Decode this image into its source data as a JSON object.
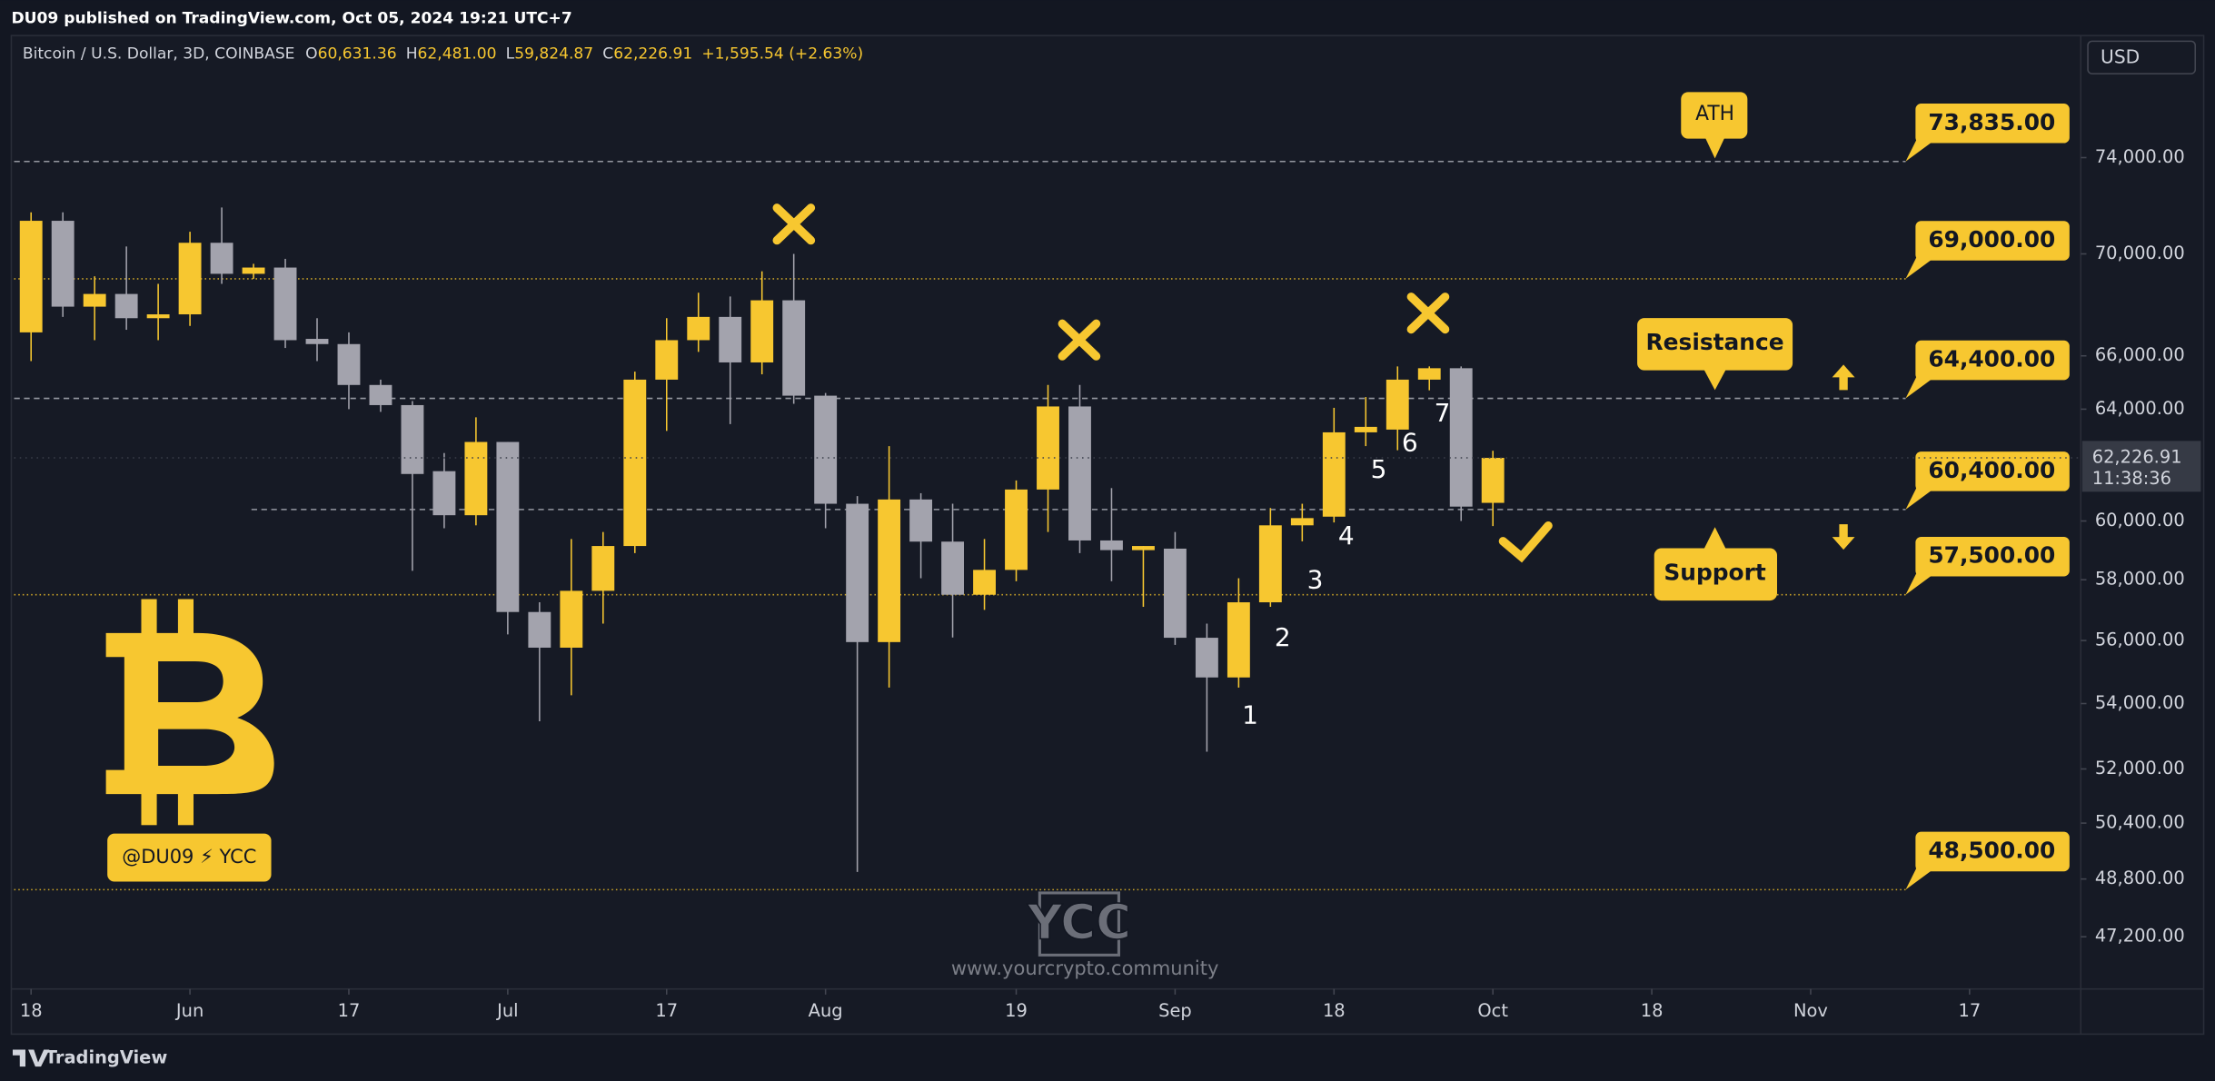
{
  "header": {
    "publisher": "DU09 published on TradingView.com, Oct 05, 2024 19:21 UTC+7",
    "symbol": "Bitcoin / U.S. Dollar, 3D, COINBASE",
    "ohlc": [
      {
        "key": "O",
        "value": "60,631.36"
      },
      {
        "key": "H",
        "value": "62,481.00"
      },
      {
        "key": "L",
        "value": "59,824.87"
      },
      {
        "key": "C",
        "value": "62,226.91"
      }
    ],
    "change": "+1,595.54 (+2.63%)",
    "currency": "USD",
    "footer": "TradingView"
  },
  "chart_data": {
    "type": "candlestick",
    "log_scale": true,
    "grid": false,
    "up_color": "#f7c730",
    "down_color": "#a3a3ad",
    "x": [
      139,
      142,
      145,
      148,
      151,
      154,
      157,
      160,
      163,
      166,
      169,
      172,
      175,
      178,
      181,
      184,
      187,
      190,
      193,
      196,
      199,
      202,
      205,
      208,
      211,
      214,
      217,
      220,
      223,
      226,
      229,
      232,
      235,
      238,
      241,
      244,
      247,
      250,
      253,
      256,
      259,
      262,
      265,
      268,
      271,
      274,
      277
    ],
    "open": [
      66900,
      71350,
      67900,
      68400,
      67450,
      67600,
      70450,
      69200,
      69450,
      66650,
      66450,
      64900,
      64150,
      61750,
      60200,
      62800,
      56930,
      55770,
      57630,
      59140,
      65100,
      66600,
      67500,
      65750,
      68150,
      64500,
      60600,
      55950,
      60750,
      59290,
      57500,
      58330,
      61100,
      64100,
      59330,
      59000,
      59050,
      56090,
      54820,
      57250,
      59850,
      60150,
      63150,
      63250,
      65100,
      65530,
      60631.36
    ],
    "high": [
      71700,
      71700,
      69100,
      70300,
      68800,
      70900,
      71900,
      69600,
      69800,
      67450,
      66900,
      65100,
      64300,
      62400,
      63700,
      62800,
      57250,
      59380,
      59620,
      65400,
      67450,
      68450,
      68300,
      69300,
      70000,
      64600,
      60870,
      62650,
      60970,
      60600,
      59380,
      61420,
      64900,
      64900,
      61150,
      59140,
      59620,
      56550,
      58050,
      60450,
      60600,
      64050,
      64450,
      65600,
      65600,
      65600,
      62481
    ],
    "low": [
      65800,
      67500,
      66600,
      67000,
      66600,
      67150,
      68800,
      69000,
      66300,
      65800,
      64000,
      63900,
      58300,
      59750,
      59850,
      56200,
      53450,
      54260,
      56550,
      58900,
      63200,
      66150,
      63450,
      65300,
      64200,
      59750,
      49000,
      54500,
      58050,
      56100,
      57000,
      57950,
      59620,
      58900,
      57950,
      57100,
      55860,
      52520,
      54500,
      57100,
      59300,
      59950,
      62650,
      62500,
      64700,
      60000,
      59824.87
    ],
    "close": [
      71350,
      67900,
      68400,
      67450,
      67600,
      70450,
      69200,
      69450,
      66600,
      66450,
      64900,
      64150,
      61650,
      60200,
      62800,
      56930,
      55770,
      57630,
      59140,
      65100,
      66600,
      67500,
      65750,
      68150,
      64500,
      60600,
      55950,
      60750,
      59290,
      57500,
      58330,
      61100,
      64100,
      59330,
      59000,
      59140,
      56090,
      54820,
      57250,
      59850,
      60100,
      63150,
      63350,
      65100,
      65530,
      60500,
      62226.91
    ],
    "xlim": [
      137.4,
      332.5
    ],
    "xticks": [
      {
        "value": 139,
        "label": "18"
      },
      {
        "value": 154,
        "label": "Jun"
      },
      {
        "value": 169,
        "label": "17"
      },
      {
        "value": 184,
        "label": "Jul"
      },
      {
        "value": 199,
        "label": "17"
      },
      {
        "value": 214,
        "label": "Aug"
      },
      {
        "value": 232,
        "label": "19"
      },
      {
        "value": 247,
        "label": "Sep"
      },
      {
        "value": 262,
        "label": "18"
      },
      {
        "value": 277,
        "label": "Oct"
      },
      {
        "value": 292,
        "label": "18"
      },
      {
        "value": 307,
        "label": "Nov"
      },
      {
        "value": 322,
        "label": "17"
      }
    ],
    "ylim": [
      45800,
      79400
    ],
    "yticks": [
      {
        "value": 74000,
        "label": "74,000.00"
      },
      {
        "value": 70000,
        "label": "70,000.00"
      },
      {
        "value": 66000,
        "label": "66,000.00"
      },
      {
        "value": 64000,
        "label": "64,000.00"
      },
      {
        "value": 60000,
        "label": "60,000.00"
      },
      {
        "value": 58000,
        "label": "58,000.00"
      },
      {
        "value": 56000,
        "label": "56,000.00"
      },
      {
        "value": 54000,
        "label": "54,000.00"
      },
      {
        "value": 52000,
        "label": "52,000.00"
      },
      {
        "value": 50400,
        "label": "50,400.00"
      },
      {
        "value": 48800,
        "label": "48,800.00"
      },
      {
        "value": 47200,
        "label": "47,200.00"
      }
    ],
    "last_price": {
      "value": 62226.91,
      "label": "62,226.91",
      "countdown": "11:38:36"
    },
    "levels": [
      {
        "value": 73835,
        "label": "73,835.00",
        "style": "dashed",
        "color": "#9598a1"
      },
      {
        "value": 69000,
        "label": "69,000.00",
        "style": "dotted",
        "color": "#c9a227"
      },
      {
        "value": 64400,
        "label": "64,400.00",
        "style": "dashed",
        "color": "#9598a1"
      },
      {
        "value": 60400,
        "label": "60,400.00",
        "style": "dashed",
        "color": "#9598a1"
      },
      {
        "value": 57500,
        "label": "57,500.00",
        "style": "dotted",
        "color": "#c9a227"
      },
      {
        "value": 48500,
        "label": "48,500.00",
        "style": "dotted",
        "color": "#c9a227"
      }
    ],
    "annotations": {
      "ath": "ATH",
      "resistance": "Resistance",
      "support": "Support",
      "wave_labels": [
        "1",
        "2",
        "3",
        "4",
        "5",
        "6",
        "7"
      ],
      "badge": "@DU09 ⚡ YCC",
      "watermark": "YCC",
      "url": "www.yourcrypto.community"
    }
  }
}
